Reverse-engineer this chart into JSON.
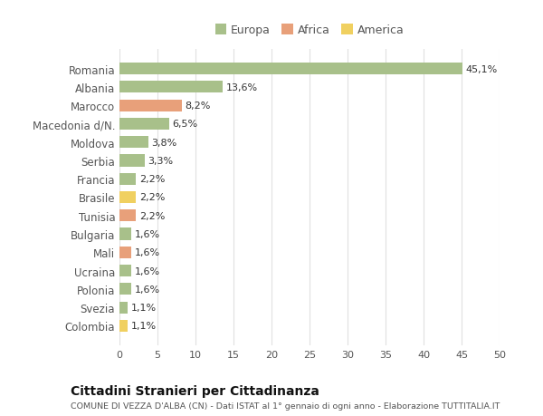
{
  "categories": [
    "Romania",
    "Albania",
    "Marocco",
    "Macedonia d/N.",
    "Moldova",
    "Serbia",
    "Francia",
    "Brasile",
    "Tunisia",
    "Bulgaria",
    "Mali",
    "Ucraina",
    "Polonia",
    "Svezia",
    "Colombia"
  ],
  "values": [
    45.1,
    13.6,
    8.2,
    6.5,
    3.8,
    3.3,
    2.2,
    2.2,
    2.2,
    1.6,
    1.6,
    1.6,
    1.6,
    1.1,
    1.1
  ],
  "labels": [
    "45,1%",
    "13,6%",
    "8,2%",
    "6,5%",
    "3,8%",
    "3,3%",
    "2,2%",
    "2,2%",
    "2,2%",
    "1,6%",
    "1,6%",
    "1,6%",
    "1,6%",
    "1,1%",
    "1,1%"
  ],
  "continents": [
    "Europa",
    "Europa",
    "Africa",
    "Europa",
    "Europa",
    "Europa",
    "Europa",
    "America",
    "Africa",
    "Europa",
    "Africa",
    "Europa",
    "Europa",
    "Europa",
    "America"
  ],
  "colors": {
    "Europa": "#a8c08a",
    "Africa": "#e8a07a",
    "America": "#f0d060"
  },
  "legend_order": [
    "Europa",
    "Africa",
    "America"
  ],
  "title": "Cittadini Stranieri per Cittadinanza",
  "subtitle": "COMUNE DI VEZZA D'ALBA (CN) - Dati ISTAT al 1° gennaio di ogni anno - Elaborazione TUTTITALIA.IT",
  "xlim": [
    0,
    50
  ],
  "xticks": [
    0,
    5,
    10,
    15,
    20,
    25,
    30,
    35,
    40,
    45,
    50
  ],
  "bg_color": "#ffffff",
  "grid_color": "#e0e0e0"
}
